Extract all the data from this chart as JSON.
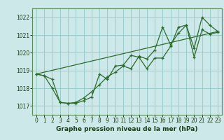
{
  "xlabel_label": "Graphe pression niveau de la mer (hPa)",
  "bg_color": "#cce8e8",
  "grid_color": "#99cccc",
  "line_color": "#2d6b2d",
  "ylim": [
    1016.5,
    1022.5
  ],
  "yticks": [
    1017,
    1018,
    1019,
    1020,
    1021,
    1022
  ],
  "xticks": [
    0,
    1,
    2,
    3,
    4,
    5,
    6,
    7,
    8,
    9,
    10,
    11,
    12,
    13,
    14,
    15,
    16,
    17,
    18,
    19,
    20,
    21,
    22,
    23
  ],
  "series1_x": [
    0,
    1,
    2,
    3,
    4,
    5,
    6,
    7,
    8,
    9,
    10,
    11,
    12,
    13,
    14,
    15,
    16,
    17,
    18,
    19,
    20,
    21,
    22,
    23
  ],
  "series1_y": [
    1018.8,
    1018.7,
    1018.5,
    1017.2,
    1017.15,
    1017.15,
    1017.3,
    1017.5,
    1018.8,
    1018.5,
    1019.25,
    1019.3,
    1019.85,
    1019.75,
    1019.1,
    1019.7,
    1019.7,
    1020.35,
    1021.45,
    1021.55,
    1020.25,
    1022.0,
    1021.55,
    1021.2
  ],
  "series2_x": [
    0,
    1,
    2,
    3,
    4,
    5,
    6,
    7,
    8,
    9,
    10,
    11,
    12,
    13,
    14,
    15,
    16,
    17,
    18,
    19,
    20,
    21,
    22,
    23
  ],
  "series2_y": [
    1018.8,
    1018.7,
    1018.0,
    1017.2,
    1017.15,
    1017.2,
    1017.45,
    1017.8,
    1018.2,
    1018.65,
    1018.9,
    1019.25,
    1019.1,
    1019.8,
    1019.65,
    1020.15,
    1021.45,
    1020.45,
    1021.1,
    1021.55,
    1019.75,
    1021.3,
    1021.05,
    1021.15
  ],
  "series3_x": [
    0,
    23
  ],
  "series3_y": [
    1018.8,
    1021.2
  ]
}
